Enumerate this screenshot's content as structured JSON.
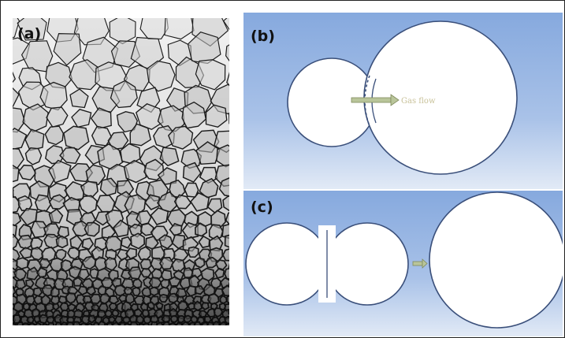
{
  "figure": {
    "panel_a": {
      "label": "(a)"
    },
    "panel_b": {
      "label": "(b)",
      "arrow_text": "Gas flow"
    },
    "panel_c": {
      "label": "(c)"
    }
  },
  "colors": {
    "panel_bg_top": "#8aaee0",
    "panel_bg_bottom": "#dfe8f5",
    "bubble_fill": "#ffffff",
    "bubble_stroke": "#3a4f7a",
    "arrow_fill": "#b9c59a",
    "arrow_text": "#c9c29a",
    "foam_edge": "#1c1c1c"
  }
}
